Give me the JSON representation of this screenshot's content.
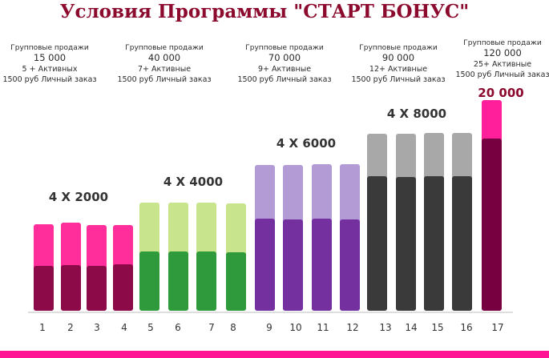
{
  "title": "Условия Программы \"СТАРТ БОНУС\"",
  "colors": {
    "title": "#8b0a2e",
    "axis": "#bdbdbd",
    "strip": "#ff1493",
    "group_label": "#333333",
    "final_label": "#8b0a2e"
  },
  "conditions": [
    {
      "l1": "Групповые продажи",
      "l2": "15 000",
      "l3": "5 + Активных",
      "l4": "1500 руб  Личный заказ"
    },
    {
      "l1": "Групповые продажи",
      "l2": "40 000",
      "l3": "7+ Активные",
      "l4": "1500 руб  Личный заказ"
    },
    {
      "l1": "Групповые продажи",
      "l2": "70 000",
      "l3": "9+ Активные",
      "l4": "1500 руб  Личный заказ"
    },
    {
      "l1": "Групповые продажи",
      "l2": "90 000",
      "l3": "12+ Активные",
      "l4": "1500 руб  Личный заказ"
    },
    {
      "l1": "Групповые продажи",
      "l2": "120 000",
      "l3": "25+ Активные",
      "l4": "1500 руб  Личный заказ"
    }
  ],
  "chart_data": {
    "type": "bar",
    "stacked": true,
    "title": "Условия Программы \"СТАРТ БОНУС\"",
    "categories": [
      "1",
      "2",
      "3",
      "4",
      "5",
      "6",
      "7",
      "8",
      "9",
      "10",
      "11",
      "12",
      "13",
      "14",
      "15",
      "16",
      "17"
    ],
    "group_labels": [
      "4 X 2000",
      "4 X 4000",
      "4 X 6000",
      "4 X 8000",
      "20 000"
    ],
    "groups": [
      {
        "label_index": 0,
        "categories": [
          "1",
          "2",
          "3",
          "4"
        ],
        "bottom_color": "#8c0a47",
        "top_color": "#ff2e9b",
        "top_values": [
          108,
          110,
          107,
          107
        ],
        "bottom_values": [
          56,
          57,
          56,
          58
        ]
      },
      {
        "label_index": 1,
        "categories": [
          "5",
          "6",
          "7",
          "8"
        ],
        "bottom_color": "#2e9a3b",
        "top_color": "#c8e48c",
        "top_values": [
          135,
          135,
          135,
          134
        ],
        "bottom_values": [
          74,
          74,
          74,
          73
        ]
      },
      {
        "label_index": 2,
        "categories": [
          "9",
          "10",
          "11",
          "12"
        ],
        "bottom_color": "#7530a0",
        "top_color": "#b39bd6",
        "top_values": [
          182,
          182,
          183,
          183
        ],
        "bottom_values": [
          115,
          114,
          115,
          114
        ]
      },
      {
        "label_index": 3,
        "categories": [
          "13",
          "14",
          "15",
          "16"
        ],
        "bottom_color": "#3a3a3a",
        "top_color": "#a8a8a8",
        "top_values": [
          221,
          221,
          222,
          222
        ],
        "bottom_values": [
          168,
          167,
          168,
          168
        ]
      },
      {
        "label_index": 4,
        "categories": [
          "17"
        ],
        "bottom_color": "#760040",
        "top_color": "#ff1f9a",
        "top_values": [
          263
        ],
        "bottom_values": [
          215
        ]
      }
    ],
    "ylim": [
      0,
      270
    ],
    "grid": false,
    "legend": "none"
  }
}
